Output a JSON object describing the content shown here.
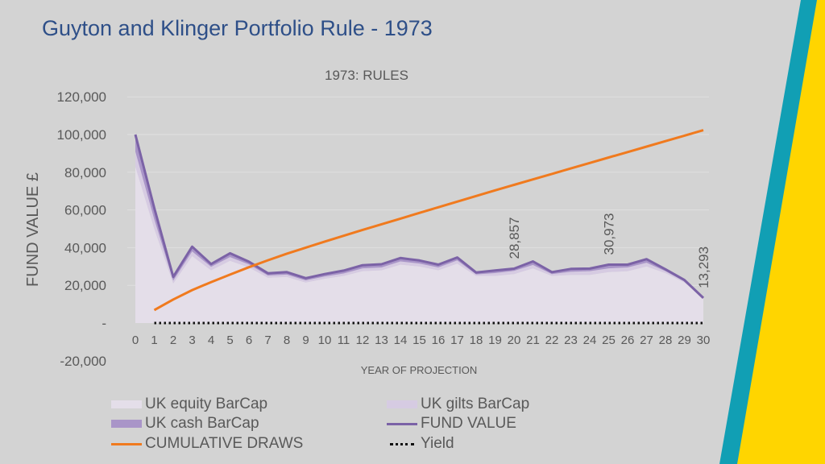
{
  "page_title": "Guyton and Klinger Portfolio Rule - 1973",
  "colors": {
    "equity": "#e4dee9",
    "gilts": "#d6cbe2",
    "cash": "#a995c8",
    "fund": "#7b62a6",
    "draws": "#f07a1e",
    "yield": "#111111",
    "title": "#2e4f88",
    "text": "#595959",
    "deco_yellow": "#ffd500",
    "deco_teal": "#119fb4"
  },
  "chart_data": {
    "type": "area",
    "title": "1973: RULES",
    "xlabel": "YEAR OF PROJECTION",
    "ylabel": "FUND VALUE £",
    "ylim": [
      -20000,
      120000
    ],
    "y_ticks": [
      "-20,000",
      "-",
      "20,000",
      "40,000",
      "60,000",
      "80,000",
      "100,000",
      "120,000"
    ],
    "grid": true,
    "legend_position": "bottom",
    "x": [
      0,
      1,
      2,
      3,
      4,
      5,
      6,
      7,
      8,
      9,
      10,
      11,
      12,
      13,
      14,
      15,
      16,
      17,
      18,
      19,
      20,
      21,
      22,
      23,
      24,
      25,
      26,
      27,
      28,
      29,
      30
    ],
    "series": [
      {
        "name": "UK equity BarCap",
        "kind": "stacked-area",
        "values": [
          83000,
          50000,
          21000,
          35500,
          28000,
          33000,
          29500,
          24000,
          24500,
          21500,
          23500,
          25000,
          27500,
          28000,
          31000,
          30000,
          28000,
          31500,
          25000,
          25000,
          26000,
          29000,
          25000,
          25500,
          25500,
          27000,
          27500,
          30000,
          26500,
          21500,
          13293
        ]
      },
      {
        "name": "UK gilts BarCap",
        "kind": "stacked-area",
        "values": [
          8000,
          5000,
          1500,
          2500,
          1800,
          2000,
          1600,
          1200,
          1200,
          1100,
          1200,
          1300,
          1500,
          1500,
          1700,
          1600,
          1500,
          1700,
          800,
          1500,
          1700,
          1800,
          1000,
          1700,
          2000,
          2000,
          2000,
          2000,
          1000,
          500,
          0
        ]
      },
      {
        "name": "UK cash BarCap",
        "kind": "stacked-area",
        "values": [
          9000,
          6000,
          2000,
          2500,
          1500,
          2000,
          1400,
          1200,
          1300,
          1200,
          1300,
          1500,
          1700,
          1700,
          1800,
          1600,
          1500,
          1600,
          1000,
          1400,
          1157,
          1900,
          1000,
          1500,
          1700,
          1973,
          1500,
          1900,
          1000,
          800,
          0
        ]
      },
      {
        "name": "FUND VALUE",
        "kind": "line",
        "values": [
          100000,
          61000,
          24500,
          40500,
          31300,
          37000,
          32500,
          26400,
          27000,
          23800,
          26000,
          27800,
          30700,
          31200,
          34500,
          33200,
          31000,
          34800,
          26800,
          27900,
          28857,
          32700,
          27000,
          28700,
          28900,
          30973,
          31000,
          33900,
          28500,
          22800,
          13293
        ]
      },
      {
        "name": "CUMULATIVE DRAWS",
        "kind": "line",
        "x_start": 1,
        "values": [
          null,
          6900,
          12500,
          17500,
          21700,
          25700,
          29600,
          33300,
          36800,
          40000,
          43200,
          46300,
          49400,
          52400,
          55400,
          58400,
          61400,
          64400,
          67400,
          70400,
          73300,
          76200,
          79100,
          82000,
          84900,
          87800,
          90700,
          93600,
          96500,
          99400,
          102300
        ]
      },
      {
        "name": "Yield",
        "kind": "dotted-line",
        "x_start": 1,
        "values": [
          null,
          0,
          0,
          0,
          0,
          0,
          0,
          0,
          0,
          0,
          0,
          0,
          0,
          0,
          0,
          0,
          0,
          0,
          0,
          0,
          0,
          0,
          0,
          0,
          0,
          0,
          0,
          0,
          0,
          0,
          0
        ]
      }
    ],
    "data_labels": [
      {
        "x": 20,
        "series": "FUND VALUE",
        "text": "28,857"
      },
      {
        "x": 25,
        "series": "FUND VALUE",
        "text": "30,973"
      },
      {
        "x": 30,
        "series": "FUND VALUE",
        "text": "13,293"
      }
    ]
  }
}
